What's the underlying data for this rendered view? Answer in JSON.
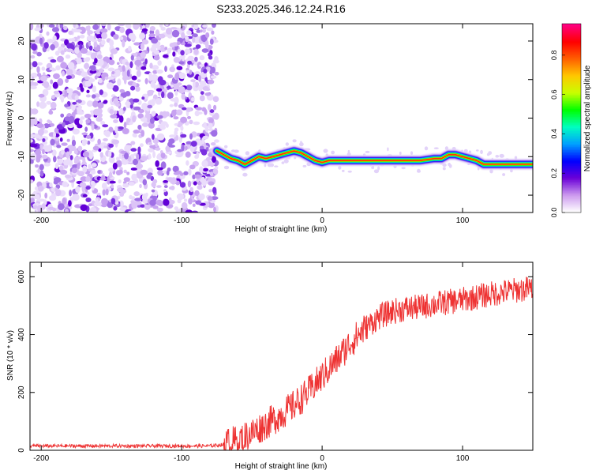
{
  "title": "S233.2025.346.12.24.R16",
  "chart_data": [
    {
      "type": "heatmap",
      "xlabel": "Height of straight line (km)",
      "ylabel": "Frequency (Hz)",
      "xlim": [
        -208,
        150
      ],
      "ylim": [
        -24.5,
        24.5
      ],
      "x_ticks": [
        -200,
        -100,
        0,
        100
      ],
      "y_ticks": [
        20,
        10,
        0,
        -10,
        -20
      ],
      "noise_region_x": [
        -208,
        -75
      ],
      "signal_ridge": {
        "x": [
          -75,
          -70,
          -65,
          -60,
          -55,
          -50,
          -45,
          -40,
          -35,
          -30,
          -25,
          -20,
          -15,
          -10,
          -5,
          0,
          5,
          10,
          20,
          30,
          40,
          50,
          60,
          70,
          80,
          85,
          90,
          95,
          100,
          105,
          110,
          115,
          120,
          130,
          140,
          150
        ],
        "y": [
          -8.5,
          -9.5,
          -10.5,
          -11,
          -12,
          -11,
          -10,
          -10.5,
          -10,
          -9.5,
          -9,
          -8.5,
          -9,
          -10,
          -11,
          -11.5,
          -11,
          -11,
          -11,
          -11,
          -11,
          -11,
          -11,
          -11,
          -10.5,
          -10.5,
          -9.5,
          -9.5,
          -10,
          -10.5,
          -11,
          -12,
          -12,
          -12,
          -12,
          -12
        ]
      },
      "colorbar": {
        "label": "Normalized spectral amplitude",
        "range": [
          0,
          0.96
        ],
        "ticks": [
          "0.0",
          "0.2",
          "0.4",
          "0.6",
          "0.8"
        ],
        "colors": [
          "#ffffff",
          "#cc99ee",
          "#6a00d8",
          "#0000ff",
          "#00a0ff",
          "#00ffc0",
          "#00ff00",
          "#c8ff00",
          "#ffc800",
          "#ff6000",
          "#ff0000",
          "#ff0080"
        ]
      }
    },
    {
      "type": "line",
      "xlabel": "Height of straight line (km)",
      "ylabel": "SNR (10 * v/v)",
      "xlim": [
        -208,
        150
      ],
      "ylim": [
        0,
        650
      ],
      "x_ticks": [
        -200,
        -100,
        0,
        100
      ],
      "y_ticks": [
        0,
        200,
        400,
        600
      ],
      "color": "#ee3333",
      "trend": {
        "x": [
          -208,
          -80,
          -70,
          -60,
          -50,
          -40,
          -30,
          -20,
          -10,
          0,
          10,
          20,
          30,
          40,
          50,
          60,
          70,
          80,
          100,
          120,
          140,
          150
        ],
        "y": [
          15,
          15,
          20,
          35,
          60,
          90,
          120,
          155,
          200,
          255,
          310,
          370,
          420,
          460,
          480,
          490,
          495,
          505,
          520,
          540,
          555,
          560
        ]
      }
    }
  ]
}
